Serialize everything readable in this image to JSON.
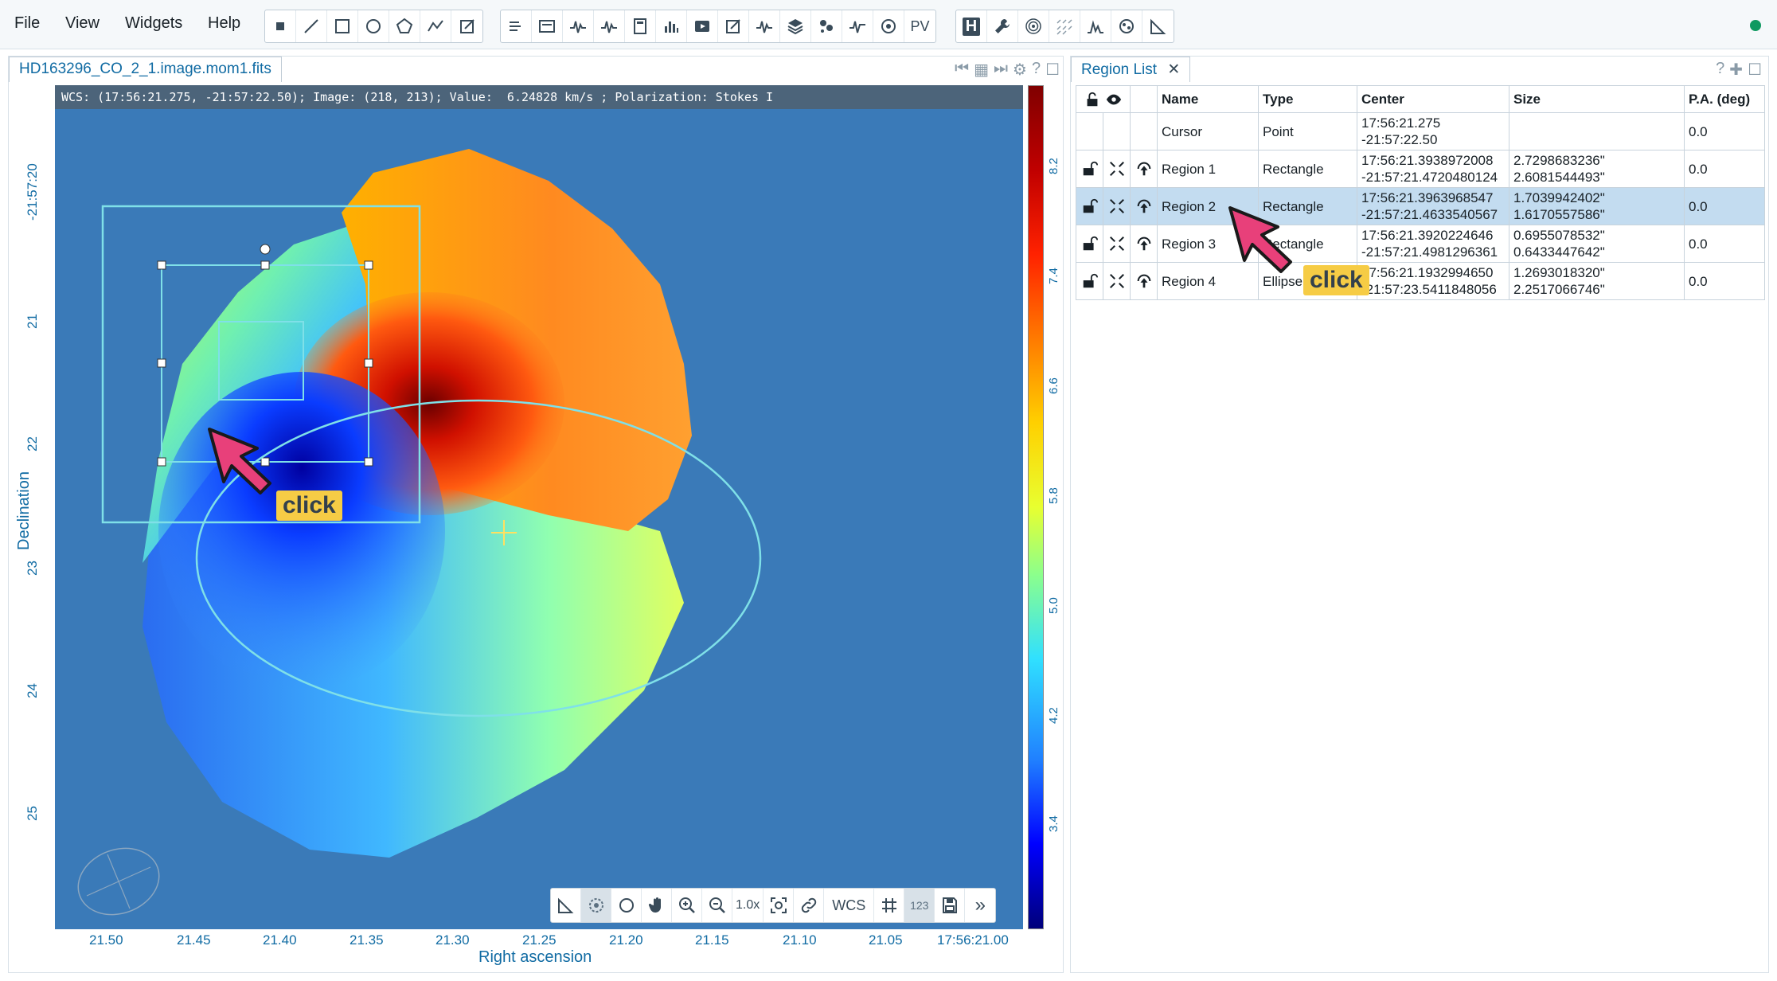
{
  "menu": {
    "file": "File",
    "view": "View",
    "widgets": "Widgets",
    "help": "Help"
  },
  "toolbar": {
    "pv_label": "PV",
    "h_label": "H"
  },
  "image_panel": {
    "tab_title": "HD163296_CO_2_1.image.mom1.fits",
    "cursor_info": "WCS: (17:56:21.275, -21:57:22.50); Image: (218, 213); Value:  6.24828 km/s ; Polarization: Stokes I",
    "ra_axis_title": "Right ascension",
    "dec_axis_title": "Declination",
    "ra_ticks": [
      "21.50",
      "21.45",
      "21.40",
      "21.35",
      "21.30",
      "21.25",
      "21.20",
      "21.15",
      "21.10",
      "21.05",
      "17:56:21.00"
    ],
    "dec_ticks": [
      "-21:57:20",
      "21",
      "22",
      "23",
      "24",
      "25"
    ],
    "colorbar_ticks": [
      "8.2",
      "7.4",
      "6.6",
      "5.8",
      "5.0",
      "4.2",
      "3.4"
    ],
    "image_toolbar": {
      "zoom_level": "1.0x",
      "coord_system": "WCS",
      "label_123": "123"
    }
  },
  "region_panel": {
    "tab_title": "Region List",
    "columns": [
      "Name",
      "Type",
      "Center",
      "Size",
      "P.A. (deg)"
    ],
    "rows": [
      {
        "name": "Cursor",
        "type": "Point",
        "center1": "17:56:21.275",
        "center2": "-21:57:22.50",
        "size1": "",
        "size2": "",
        "pa": "0.0",
        "icons": false,
        "selected": false
      },
      {
        "name": "Region 1",
        "type": "Rectangle",
        "center1": "17:56:21.3938972008",
        "center2": "-21:57:21.4720480124",
        "size1": "2.7298683236\"",
        "size2": "2.6081544493\"",
        "pa": "0.0",
        "icons": true,
        "selected": false
      },
      {
        "name": "Region 2",
        "type": "Rectangle",
        "center1": "17:56:21.3963968547",
        "center2": "-21:57:21.4633540567",
        "size1": "1.7039942402\"",
        "size2": "1.6170557586\"",
        "pa": "0.0",
        "icons": true,
        "selected": true
      },
      {
        "name": "Region 3",
        "type": "Rectangle",
        "center1": "17:56:21.3920224646",
        "center2": "-21:57:21.4981296361",
        "size1": "0.6955078532\"",
        "size2": "0.6433447642\"",
        "pa": "0.0",
        "icons": true,
        "selected": false
      },
      {
        "name": "Region 4",
        "type": "Ellipse",
        "center1": "17:56:21.1932994650",
        "center2": "-21:57:23.5411848056",
        "size1": "1.2693018320\"",
        "size2": "2.2517066746\"",
        "pa": "0.0",
        "icons": true,
        "selected": false
      }
    ]
  },
  "callouts": {
    "click_label": "click"
  },
  "colors": {
    "accent": "#106ba3",
    "selection": "#c3dcf0",
    "region": "#7fe0e8",
    "callout": "#f6cc45",
    "pointer": "#e8407a"
  }
}
